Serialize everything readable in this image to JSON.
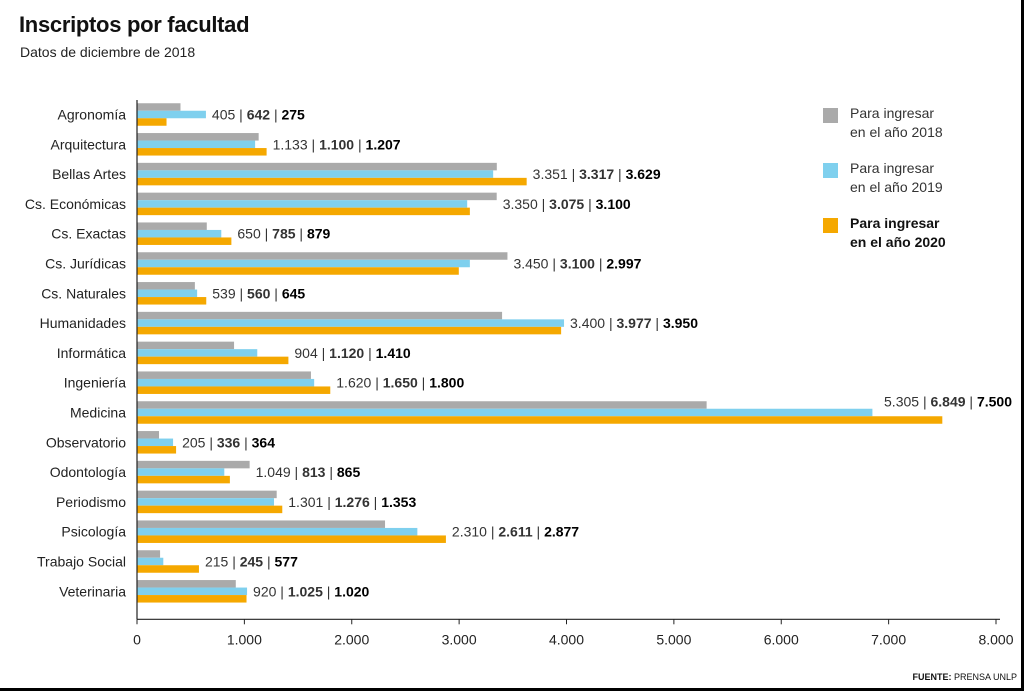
{
  "header": {
    "title": "Inscriptos por facultad",
    "subtitle": "Datos de diciembre de 2018"
  },
  "source": {
    "label": "FUENTE:",
    "value": "PRENSA UNLP"
  },
  "legend": [
    {
      "line1": "Para ingresar",
      "line2": "en el año 2018",
      "color": "#aaaaaa"
    },
    {
      "line1": "Para ingresar",
      "line2": "en el año 2019",
      "color": "#7fd0ee"
    },
    {
      "line1": "Para ingresar",
      "line2": "en el año 2020",
      "color": "#f5a800"
    }
  ],
  "chart_data": {
    "type": "bar",
    "orientation": "horizontal",
    "title": "Inscriptos por facultad",
    "subtitle": "Datos de diciembre de 2018",
    "xlim": [
      0,
      8000
    ],
    "xticks": [
      "0",
      "1.000",
      "2.000",
      "3.000",
      "4.000",
      "5.000",
      "6.000",
      "7.000",
      "8.000"
    ],
    "grid": false,
    "legend_position": "top-right",
    "categories": [
      "Agronomía",
      "Arquitectura",
      "Bellas Artes",
      "Cs. Económicas",
      "Cs. Exactas",
      "Cs. Jurídicas",
      "Cs. Naturales",
      "Humanidades",
      "Informática",
      "Ingeniería",
      "Medicina",
      "Observatorio",
      "Odontología",
      "Periodismo",
      "Psicología",
      "Trabajo Social",
      "Veterinaria"
    ],
    "series": [
      {
        "name": "Para ingresar en el año 2018",
        "color": "#aaaaaa",
        "values": [
          405,
          1133,
          3351,
          3350,
          650,
          3450,
          539,
          3400,
          904,
          1620,
          5305,
          205,
          1049,
          1301,
          2310,
          215,
          920
        ],
        "labels": [
          "405",
          "1.133",
          "3.351",
          "3.350",
          "650",
          "3.450",
          "539",
          "3.400",
          "904",
          "1.620",
          "5.305",
          "205",
          "1.049",
          "1.301",
          "2.310",
          "215",
          "920"
        ]
      },
      {
        "name": "Para ingresar en el año 2019",
        "color": "#7fd0ee",
        "values": [
          642,
          1100,
          3317,
          3075,
          785,
          3100,
          560,
          3977,
          1120,
          1650,
          6849,
          336,
          813,
          1276,
          2611,
          245,
          1025
        ],
        "labels": [
          "642",
          "1.100",
          "3.317",
          "3.075",
          "785",
          "3.100",
          "560",
          "3.977",
          "1.120",
          "1.650",
          "6.849",
          "336",
          "813",
          "1.276",
          "2.611",
          "245",
          "1.025"
        ]
      },
      {
        "name": "Para ingresar en el año 2020",
        "color": "#f5a800",
        "values": [
          275,
          1207,
          3629,
          3100,
          879,
          2997,
          645,
          3950,
          1410,
          1800,
          7500,
          364,
          865,
          1353,
          2877,
          577,
          1020
        ],
        "labels": [
          "275",
          "1.207",
          "3.629",
          "3.100",
          "879",
          "2.997",
          "645",
          "3.950",
          "1.410",
          "1.800",
          "7.500",
          "364",
          "865",
          "1.353",
          "2.877",
          "577",
          "1.020"
        ]
      }
    ]
  }
}
